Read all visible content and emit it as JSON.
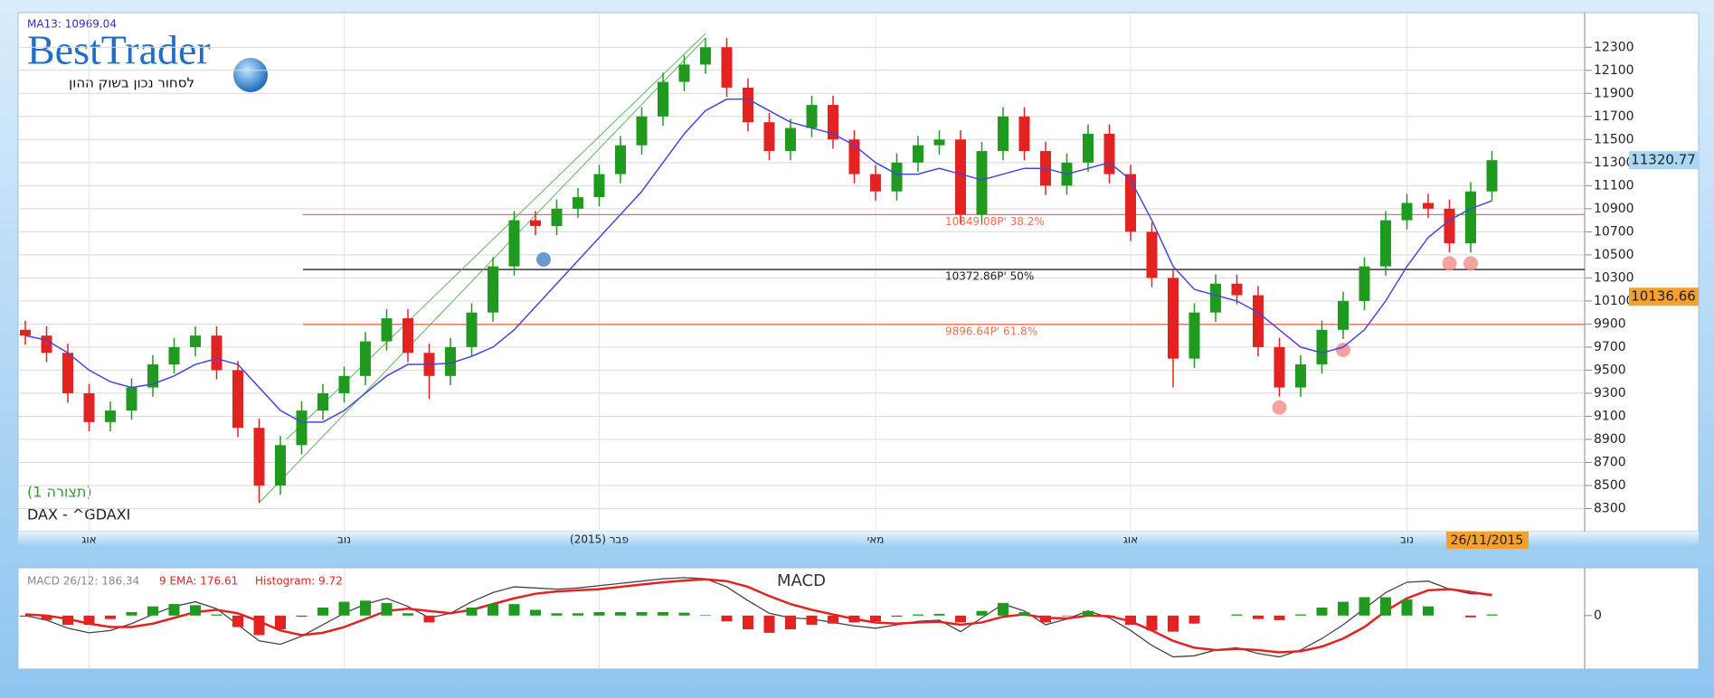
{
  "logo": {
    "name": "BestTrader",
    "tagline": "לסחור נכון בשוק ההון"
  },
  "chart_data": [
    {
      "type": "candlestick",
      "title": "DAX - ^GDAXI",
      "subtitle": "(תצורה 1)",
      "categories": [
        null,
        null,
        null,
        "אוג",
        null,
        null,
        null,
        null,
        null,
        null,
        null,
        null,
        null,
        null,
        null,
        "נוב",
        null,
        null,
        null,
        null,
        null,
        null,
        null,
        null,
        null,
        null,
        null,
        "פבר (2015)",
        null,
        null,
        null,
        null,
        null,
        null,
        null,
        null,
        null,
        null,
        null,
        null,
        "מאי",
        null,
        null,
        null,
        null,
        null,
        null,
        null,
        null,
        null,
        null,
        null,
        "אוג",
        null,
        null,
        null,
        null,
        null,
        null,
        null,
        null,
        null,
        null,
        null,
        null,
        "נוב",
        null,
        null,
        null,
        null
      ],
      "open": [
        9850,
        9800,
        9650,
        9300,
        9050,
        9150,
        9350,
        9550,
        9700,
        9800,
        9500,
        9000,
        8500,
        8850,
        9150,
        9300,
        9450,
        9750,
        9950,
        9650,
        9450,
        9700,
        10000,
        10400,
        10800,
        10750,
        10900,
        11000,
        11200,
        11450,
        11700,
        12000,
        12150,
        12300,
        11950,
        11650,
        11400,
        11600,
        11800,
        11500,
        11200,
        11050,
        11300,
        11450,
        11500,
        10850,
        11400,
        11700,
        11400,
        11100,
        11300,
        11550,
        11200,
        10700,
        10300,
        9600,
        10000,
        10250,
        10150,
        9700,
        9350,
        9550,
        9850,
        10100,
        10400,
        10800,
        10950,
        10900,
        10600,
        11050
      ],
      "high": [
        9930,
        9880,
        9730,
        9380,
        9230,
        9430,
        9630,
        9780,
        9880,
        9880,
        9580,
        9080,
        8930,
        9230,
        9380,
        9530,
        9830,
        10030,
        10030,
        9730,
        9780,
        10080,
        10480,
        10880,
        10880,
        10980,
        11080,
        11280,
        11530,
        11780,
        12080,
        12230,
        12380,
        12380,
        12030,
        11730,
        11680,
        11880,
        11880,
        11580,
        11280,
        11380,
        11530,
        11580,
        11580,
        11480,
        11780,
        11780,
        11480,
        11380,
        11630,
        11630,
        11280,
        10780,
        10380,
        10080,
        10330,
        10330,
        10230,
        9780,
        9630,
        9930,
        10180,
        10480,
        10880,
        11030,
        11030,
        10980,
        11130,
        11400
      ],
      "low": [
        9720,
        9570,
        9220,
        8970,
        8970,
        9070,
        9270,
        9470,
        9620,
        9420,
        8920,
        8350,
        8420,
        8770,
        9070,
        9220,
        9370,
        9670,
        9570,
        9250,
        9370,
        9620,
        9920,
        10320,
        10670,
        10670,
        10820,
        10920,
        11120,
        11370,
        11620,
        11920,
        12070,
        11870,
        11570,
        11320,
        11320,
        11520,
        11420,
        11120,
        10970,
        10970,
        11220,
        11370,
        10770,
        10770,
        11320,
        11320,
        11020,
        11020,
        11220,
        11120,
        10620,
        10220,
        9350,
        9520,
        9920,
        10070,
        9620,
        9270,
        9270,
        9470,
        9770,
        10020,
        10320,
        10720,
        10820,
        10520,
        10520,
        10970
      ],
      "close": [
        9800,
        9650,
        9300,
        9050,
        9150,
        9350,
        9550,
        9700,
        9800,
        9500,
        9000,
        8500,
        8850,
        9150,
        9300,
        9450,
        9750,
        9950,
        9650,
        9450,
        9700,
        10000,
        10400,
        10800,
        10750,
        10900,
        11000,
        11200,
        11450,
        11700,
        12000,
        12150,
        12300,
        11950,
        11650,
        11400,
        11600,
        11800,
        11500,
        11200,
        11050,
        11300,
        11450,
        11500,
        10850,
        11400,
        11700,
        11400,
        11100,
        11300,
        11550,
        11200,
        10700,
        10300,
        9600,
        10000,
        10250,
        10150,
        9700,
        9350,
        9550,
        9850,
        10100,
        10400,
        10800,
        10950,
        10900,
        10600,
        11050,
        11320.77
      ],
      "up_color": "#1f9a1f",
      "down_color": "#e32222",
      "series": [
        {
          "name": "MA13: 10969.04",
          "color": "#4646d8",
          "values": [
            9800,
            9760,
            9650,
            9500,
            9400,
            9350,
            9380,
            9450,
            9550,
            9600,
            9550,
            9350,
            9150,
            9050,
            9050,
            9150,
            9300,
            9450,
            9550,
            9550,
            9560,
            9620,
            9700,
            9850,
            10050,
            10250,
            10450,
            10650,
            10850,
            11050,
            11300,
            11550,
            11750,
            11850,
            11850,
            11750,
            11650,
            11600,
            11550,
            11450,
            11300,
            11200,
            11200,
            11250,
            11200,
            11150,
            11200,
            11250,
            11250,
            11200,
            11250,
            11300,
            11150,
            10800,
            10400,
            10200,
            10150,
            10100,
            10000,
            9850,
            9700,
            9650,
            9700,
            9850,
            10100,
            10400,
            10650,
            10800,
            10900,
            10969.04
          ]
        }
      ],
      "fib_levels": [
        {
          "value": 10849.08,
          "label": "10849.08P' 38.2%",
          "color": "#f07050",
          "text_color": "#f07050"
        },
        {
          "value": 10372.86,
          "label": "10372.86P' 50%",
          "color": "#222222",
          "text_color": "#222222"
        },
        {
          "value": 9896.64,
          "label": "9896.64P' 61.8%",
          "color": "#f07050",
          "text_color": "#f07050"
        }
      ],
      "price_badges": [
        {
          "value": 11320.77,
          "color": "#a8d8f4"
        },
        {
          "value": 10136.66,
          "color": "#f5a030"
        }
      ],
      "date_badge": "26/11/2015",
      "ylim": [
        8100,
        12600
      ],
      "yticks": [
        8300,
        8500,
        8700,
        8900,
        9100,
        9300,
        9500,
        9700,
        9900,
        10100,
        10300,
        10500,
        10700,
        10900,
        11100,
        11300,
        11500,
        11700,
        11900,
        12100,
        12300
      ],
      "grid": true
    },
    {
      "type": "macd",
      "title": "MACD",
      "series": [
        {
          "name": "MACD 26/12: 186.34",
          "color": "#444444",
          "text_color": "#888888",
          "values": [
            0,
            -40,
            -110,
            -150,
            -130,
            -70,
            10,
            80,
            120,
            60,
            -80,
            -220,
            -250,
            -180,
            -80,
            20,
            100,
            150,
            80,
            -20,
            20,
            120,
            200,
            250,
            240,
            230,
            240,
            260,
            280,
            300,
            320,
            330,
            320,
            250,
            130,
            20,
            -20,
            -30,
            -60,
            -90,
            -110,
            -80,
            -50,
            -40,
            -140,
            -20,
            100,
            40,
            -80,
            -30,
            40,
            -20,
            -130,
            -260,
            -360,
            -350,
            -300,
            -280,
            -330,
            -360,
            -300,
            -200,
            -80,
            60,
            200,
            290,
            300,
            230,
            190,
            186.34
          ]
        },
        {
          "name": "9 EMA: 176.61",
          "color": "#e32222",
          "text_color": "#e32222",
          "values": [
            10,
            0,
            -30,
            -70,
            -100,
            -100,
            -70,
            -20,
            30,
            50,
            20,
            -50,
            -130,
            -170,
            -150,
            -100,
            -30,
            40,
            60,
            40,
            20,
            50,
            100,
            150,
            190,
            210,
            220,
            230,
            250,
            270,
            290,
            305,
            315,
            300,
            250,
            170,
            100,
            50,
            10,
            -30,
            -60,
            -70,
            -60,
            -55,
            -80,
            -60,
            -10,
            10,
            -20,
            -25,
            0,
            -5,
            -50,
            -130,
            -220,
            -280,
            -300,
            -290,
            -300,
            -320,
            -310,
            -270,
            -200,
            -100,
            40,
            150,
            220,
            230,
            205,
            176.61
          ]
        },
        {
          "name": "Histogram: 9.72",
          "color": "#1f9a1f",
          "negative_color": "#e32222",
          "text_color": "#e32222",
          "values": [
            -10,
            -40,
            -80,
            -80,
            -30,
            30,
            80,
            100,
            90,
            10,
            -100,
            -170,
            -120,
            -10,
            70,
            120,
            130,
            110,
            20,
            -60,
            0,
            70,
            100,
            100,
            50,
            20,
            20,
            30,
            30,
            30,
            30,
            25,
            5,
            -50,
            -120,
            -150,
            -120,
            -80,
            -70,
            -60,
            -50,
            -10,
            10,
            15,
            -60,
            40,
            110,
            30,
            -60,
            -5,
            40,
            -15,
            -80,
            -130,
            -140,
            -70,
            0,
            10,
            -30,
            -40,
            10,
            70,
            120,
            160,
            160,
            140,
            80,
            0,
            -15,
            9.72
          ]
        }
      ],
      "ylim": [
        -450,
        400
      ],
      "yticks": [
        0
      ]
    }
  ]
}
